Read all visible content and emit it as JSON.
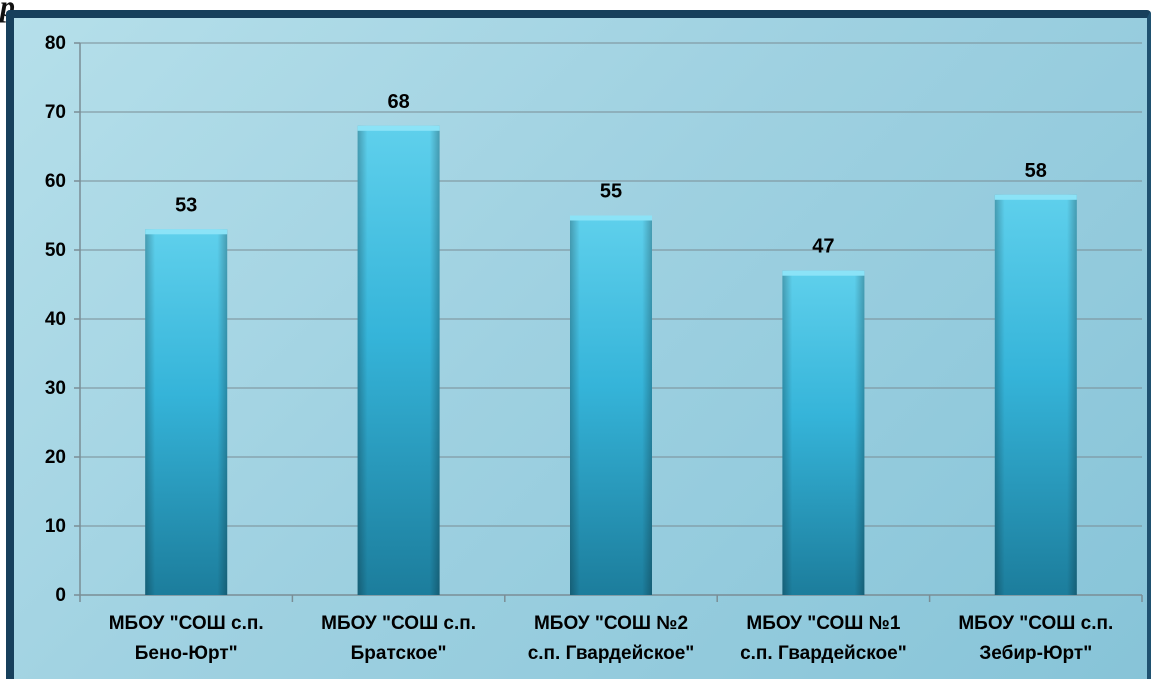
{
  "page": {
    "corner_fragment": "р"
  },
  "chart_data": {
    "type": "bar",
    "title": "",
    "xlabel": "",
    "ylabel": "",
    "categories": [
      [
        "МБОУ \"СОШ с.п.",
        "Бено-Юрт\""
      ],
      [
        "МБОУ \"СОШ с.п.",
        "Братское\""
      ],
      [
        "МБОУ \"СОШ №2",
        "с.п. Гвардейское\""
      ],
      [
        "МБОУ \"СОШ №1",
        "с.п. Гвардейское\""
      ],
      [
        "МБОУ \"СОШ с.п.",
        "Зебир-Юрт\""
      ]
    ],
    "values": [
      53,
      68,
      55,
      47,
      58
    ],
    "ylim": [
      0,
      80
    ],
    "yticks": [
      0,
      10,
      20,
      30,
      40,
      50,
      60,
      70,
      80
    ],
    "grid": true,
    "data_labels": true,
    "legend": "none",
    "colors": {
      "bar_top": "#5fd0ec",
      "bar_mid": "#35b4d9",
      "bar_bottom": "#1c7d9c",
      "grid": "#7a8d95",
      "plot_bg": "#9dd0e0"
    }
  }
}
